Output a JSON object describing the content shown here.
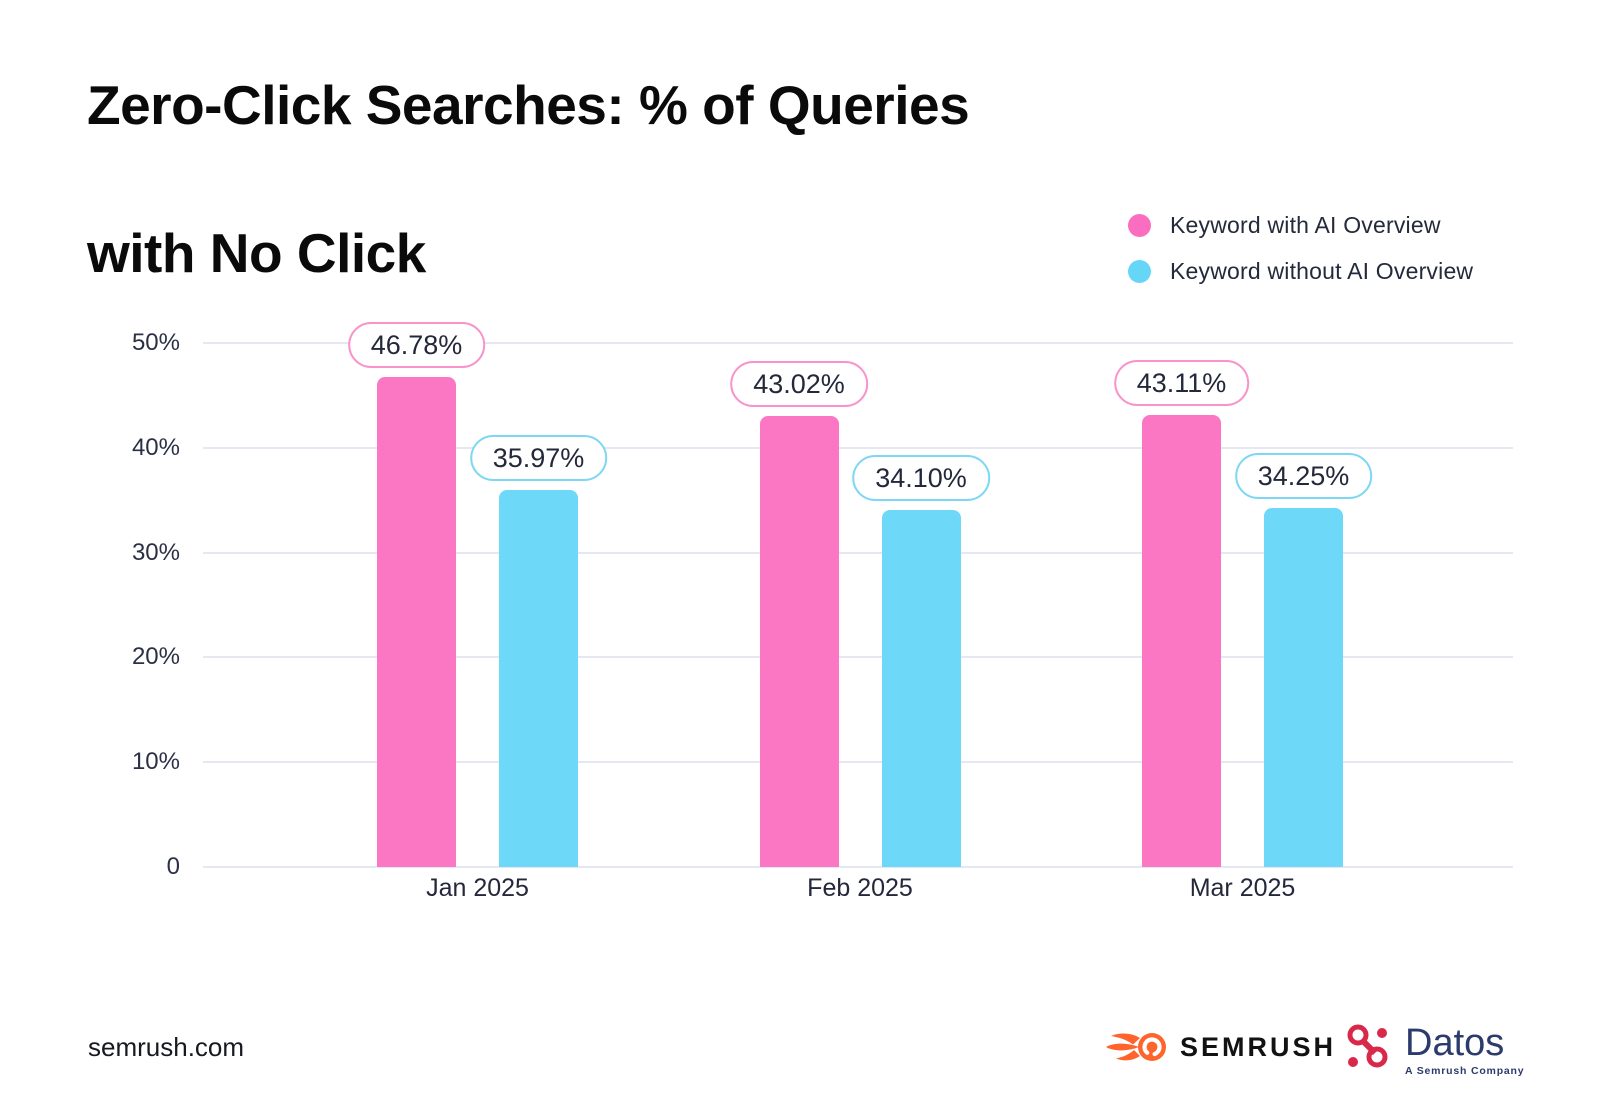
{
  "title": {
    "line1": "Zero-Click Searches: % of Queries",
    "line2": "with No Click"
  },
  "legend": {
    "items": [
      {
        "label": "Keyword with AI Overview",
        "color": "#fa6dc0"
      },
      {
        "label": "Keyword without AI Overview",
        "color": "#66d6f8"
      }
    ]
  },
  "chart_data": {
    "type": "bar",
    "title": "Zero-Click Searches: % of Queries with No Click",
    "categories": [
      "Jan 2025",
      "Feb 2025",
      "Mar 2025"
    ],
    "series": [
      {
        "name": "Keyword with AI Overview",
        "color": "#fb77c4",
        "bubble_border": "#f893cb",
        "values": [
          46.78,
          43.02,
          43.11
        ],
        "labels": [
          "46.78%",
          "43.02%",
          "43.11%"
        ]
      },
      {
        "name": "Keyword without AI Overview",
        "color": "#6dd8f8",
        "bubble_border": "#7fd8f3",
        "values": [
          35.97,
          34.1,
          34.25
        ],
        "labels": [
          "35.97%",
          "34.10%",
          "34.25%"
        ]
      }
    ],
    "xlabel": "",
    "ylabel": "",
    "ylim": [
      0,
      50
    ],
    "yticks": {
      "values": [
        0,
        10,
        20,
        30,
        40,
        50
      ],
      "labels": [
        "0",
        "10%",
        "20%",
        "30%",
        "40%",
        "50%"
      ]
    },
    "grid": true,
    "legend_position": "top-right",
    "gridline_color": "#e5e8f2"
  },
  "footer": {
    "site": "semrush.com",
    "semrush_wordmark": "SEMRUSH",
    "datos_wordmark": "Datos",
    "datos_tagline": "A Semrush Company"
  }
}
